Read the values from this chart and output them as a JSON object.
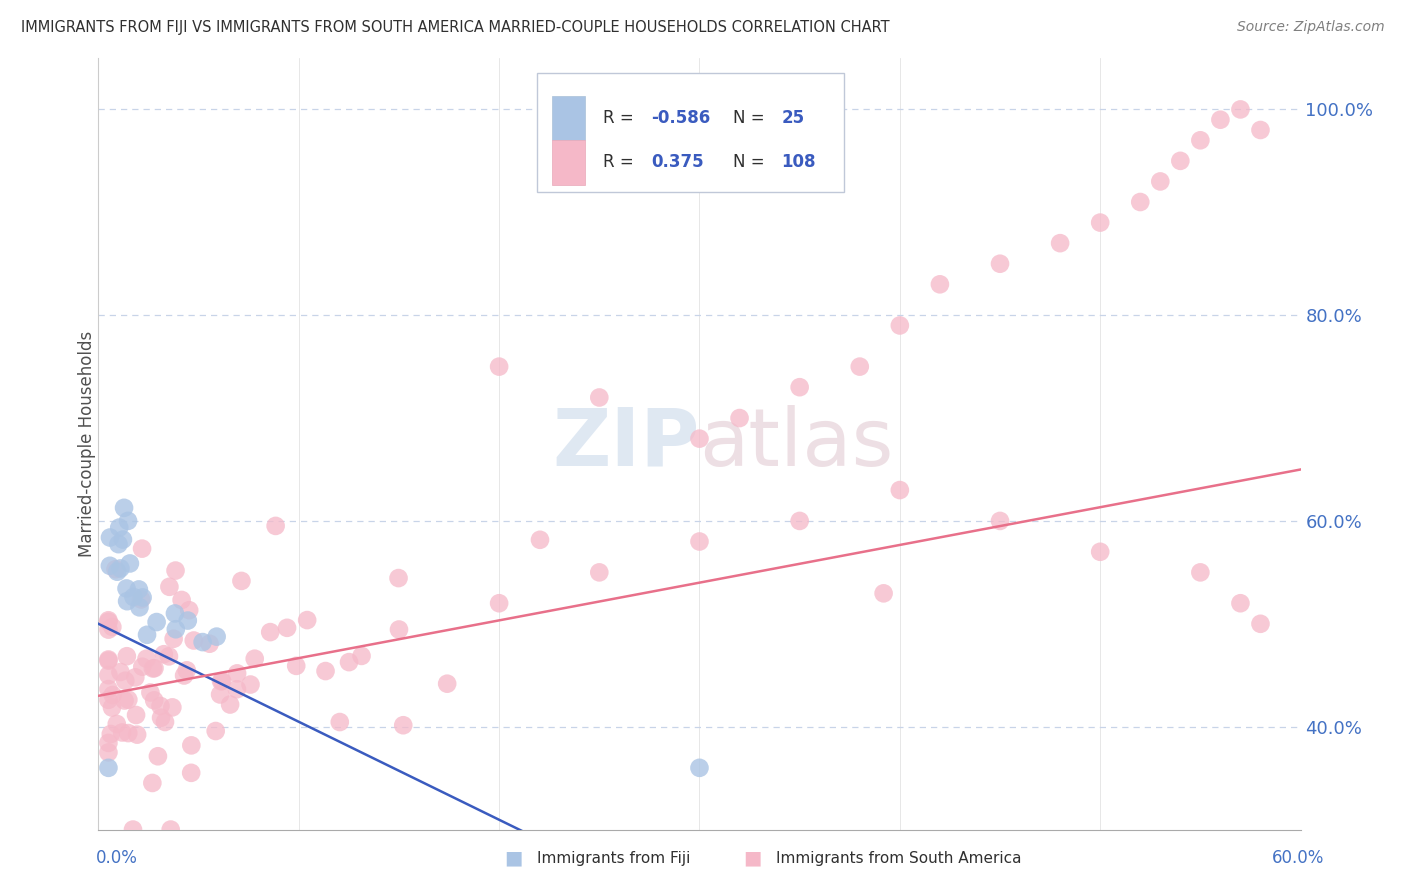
{
  "title": "IMMIGRANTS FROM FIJI VS IMMIGRANTS FROM SOUTH AMERICA MARRIED-COUPLE HOUSEHOLDS CORRELATION CHART",
  "source": "Source: ZipAtlas.com",
  "ylabel": "Married-couple Households",
  "xmin": 0.0,
  "xmax": 0.6,
  "ymin": 0.3,
  "ymax": 1.05,
  "fiji_R": -0.586,
  "fiji_N": 25,
  "sa_R": 0.375,
  "sa_N": 108,
  "fiji_color": "#aac4e4",
  "sa_color": "#f5b8c8",
  "fiji_line_color": "#3a5bbf",
  "sa_line_color": "#e8708a",
  "legend_fiji_label": "Immigrants from Fiji",
  "legend_sa_label": "Immigrants from South America",
  "watermark": "ZIPatlas",
  "background_color": "#ffffff",
  "grid_color": "#c8d4e8",
  "title_color": "#303030",
  "axis_label_color": "#4472c4",
  "source_color": "#808080",
  "yticks": [
    0.4,
    0.6,
    0.8,
    1.0
  ],
  "ytick_labels": [
    "40.0%",
    "60.0%",
    "80.0%",
    "100.0%"
  ]
}
